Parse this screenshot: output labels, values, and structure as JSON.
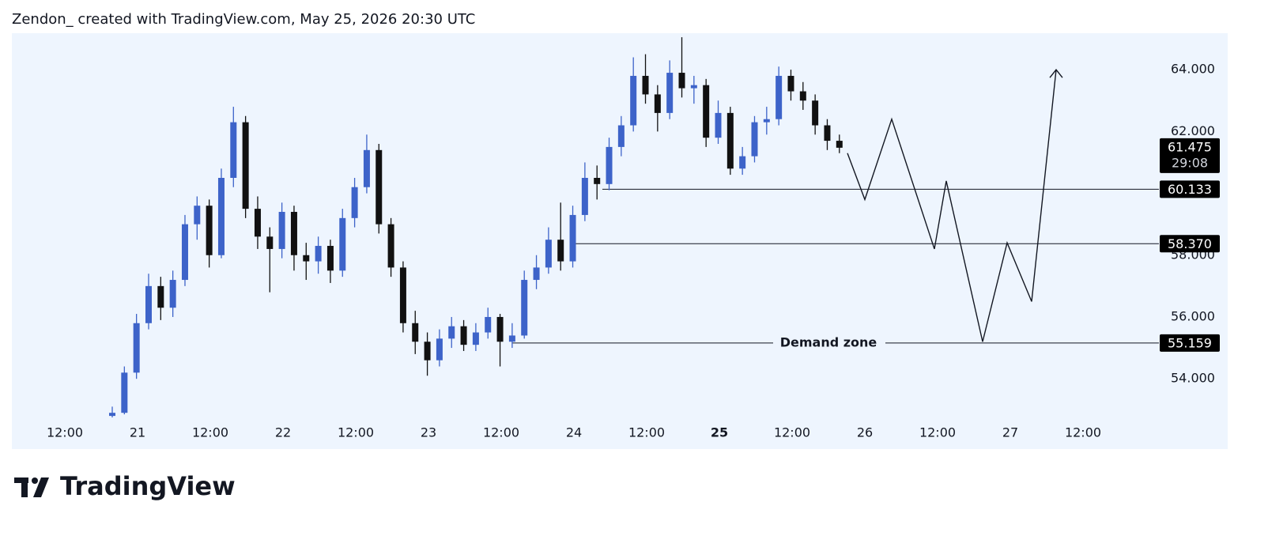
{
  "header": {
    "text": "Zendon_ created with TradingView.com, May 25, 2026 20:30 UTC"
  },
  "footer": {
    "brand": "TradingView"
  },
  "chart_data": {
    "type": "candlestick",
    "up_color": "#3d63c9",
    "down_color": "#111111",
    "ylim": [
      52.7,
      65.18
    ],
    "yticks": [
      {
        "value": 54,
        "label": "54.000"
      },
      {
        "value": 56,
        "label": "56.000"
      },
      {
        "value": 58,
        "label": "58.000"
      },
      {
        "value": 62,
        "label": "62.000"
      },
      {
        "value": 64,
        "label": "64.000"
      }
    ],
    "x_labels": [
      "12:00",
      "21",
      "12:00",
      "22",
      "12:00",
      "23",
      "12:00",
      "24",
      "12:00",
      "25",
      "12:00",
      "26",
      "12:00",
      "27",
      "12:00"
    ],
    "open": [
      52.8,
      52.9,
      54.2,
      55.8,
      57.0,
      56.3,
      57.2,
      59.0,
      59.6,
      58.0,
      60.5,
      62.3,
      59.5,
      58.6,
      58.2,
      59.4,
      58.0,
      57.8,
      58.3,
      57.5,
      59.2,
      60.2,
      61.4,
      59.0,
      57.6,
      55.8,
      55.2,
      54.6,
      55.3,
      55.7,
      55.1,
      55.5,
      56.0,
      55.2,
      55.4,
      57.2,
      57.6,
      58.5,
      57.8,
      59.3,
      60.5,
      60.3,
      61.5,
      62.2,
      63.8,
      63.2,
      62.6,
      63.9,
      63.4,
      63.5,
      61.8,
      62.6,
      60.8,
      61.2,
      62.3,
      62.4,
      63.8,
      63.3,
      63.0,
      62.2,
      61.7
    ],
    "high": [
      53.1,
      54.4,
      56.1,
      57.4,
      57.3,
      57.5,
      59.3,
      59.9,
      59.8,
      60.8,
      62.8,
      62.5,
      59.9,
      58.9,
      59.7,
      59.6,
      58.4,
      58.6,
      58.5,
      59.5,
      60.5,
      61.9,
      61.6,
      59.2,
      57.8,
      56.2,
      55.5,
      55.6,
      56.0,
      55.9,
      55.8,
      56.3,
      56.1,
      55.8,
      57.5,
      58.0,
      58.9,
      59.7,
      59.6,
      61.0,
      60.9,
      61.8,
      62.5,
      64.4,
      64.5,
      63.5,
      64.3,
      65.05,
      63.8,
      63.7,
      63.0,
      62.8,
      61.5,
      62.5,
      62.8,
      64.1,
      64.0,
      63.6,
      63.2,
      62.4,
      61.9
    ],
    "low": [
      52.75,
      52.85,
      54.0,
      55.6,
      55.9,
      56.0,
      57.0,
      58.5,
      57.6,
      57.9,
      60.2,
      59.2,
      58.2,
      56.8,
      57.9,
      57.5,
      57.2,
      57.4,
      57.1,
      57.3,
      58.9,
      60.0,
      58.7,
      57.3,
      55.5,
      54.8,
      54.1,
      54.4,
      55.0,
      54.9,
      54.9,
      55.3,
      54.4,
      55.0,
      55.3,
      56.9,
      57.4,
      57.5,
      57.6,
      59.1,
      59.8,
      60.1,
      61.2,
      62.0,
      62.9,
      62.0,
      62.4,
      63.1,
      62.9,
      61.5,
      61.6,
      60.6,
      60.6,
      61.0,
      61.9,
      62.2,
      63.0,
      62.7,
      61.9,
      61.4,
      61.3
    ],
    "close": [
      52.9,
      54.2,
      55.8,
      57.0,
      56.3,
      57.2,
      59.0,
      59.6,
      58.0,
      60.5,
      62.3,
      59.5,
      58.6,
      58.2,
      59.4,
      58.0,
      57.8,
      58.3,
      57.5,
      59.2,
      60.2,
      61.4,
      59.0,
      57.6,
      55.8,
      55.2,
      54.6,
      55.3,
      55.7,
      55.1,
      55.5,
      56.0,
      55.2,
      55.4,
      57.2,
      57.6,
      58.5,
      57.8,
      59.3,
      60.5,
      60.3,
      61.5,
      62.2,
      63.8,
      63.2,
      62.6,
      63.9,
      63.4,
      63.5,
      61.8,
      62.6,
      60.8,
      61.2,
      62.3,
      62.4,
      63.8,
      63.3,
      63.0,
      62.2,
      61.7,
      61.475
    ],
    "last_price": {
      "value": 61.475,
      "countdown": "29:08"
    },
    "levels": {
      "values": [
        60.133,
        58.37,
        55.159
      ],
      "value_labels": [
        "60.133",
        "58.370",
        "55.159"
      ]
    },
    "demand_zone_label": "Demand zone",
    "projection": {
      "values": [
        61.3,
        59.8,
        62.4,
        58.2,
        60.4,
        55.2,
        58.4,
        56.5,
        64.0
      ]
    }
  }
}
